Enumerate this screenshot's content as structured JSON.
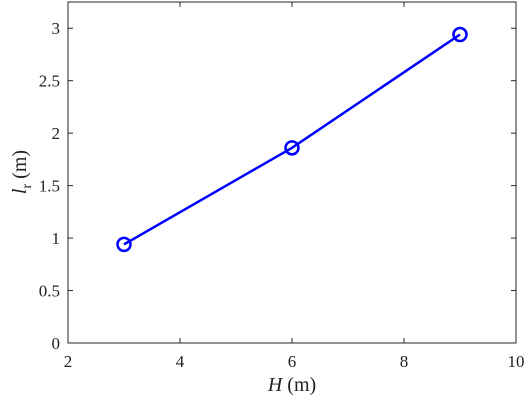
{
  "chart_data": {
    "type": "line",
    "x": [
      3,
      6,
      9
    ],
    "series": [
      {
        "color": "#0000ff",
        "marker": "circle",
        "values": [
          0.94,
          1.86,
          2.94
        ]
      }
    ],
    "xlim": [
      2,
      10
    ],
    "xticks": [
      2,
      4,
      6,
      8,
      10
    ],
    "ylim": [
      0,
      3.25
    ],
    "yticks": [
      0,
      0.5,
      1,
      1.5,
      2,
      2.5,
      3
    ],
    "xlabel": {
      "symbol": "H",
      "unit": "(m)"
    },
    "ylabel": {
      "symbol": "l",
      "subscript": "r",
      "unit": "(m)"
    },
    "grid": false
  }
}
